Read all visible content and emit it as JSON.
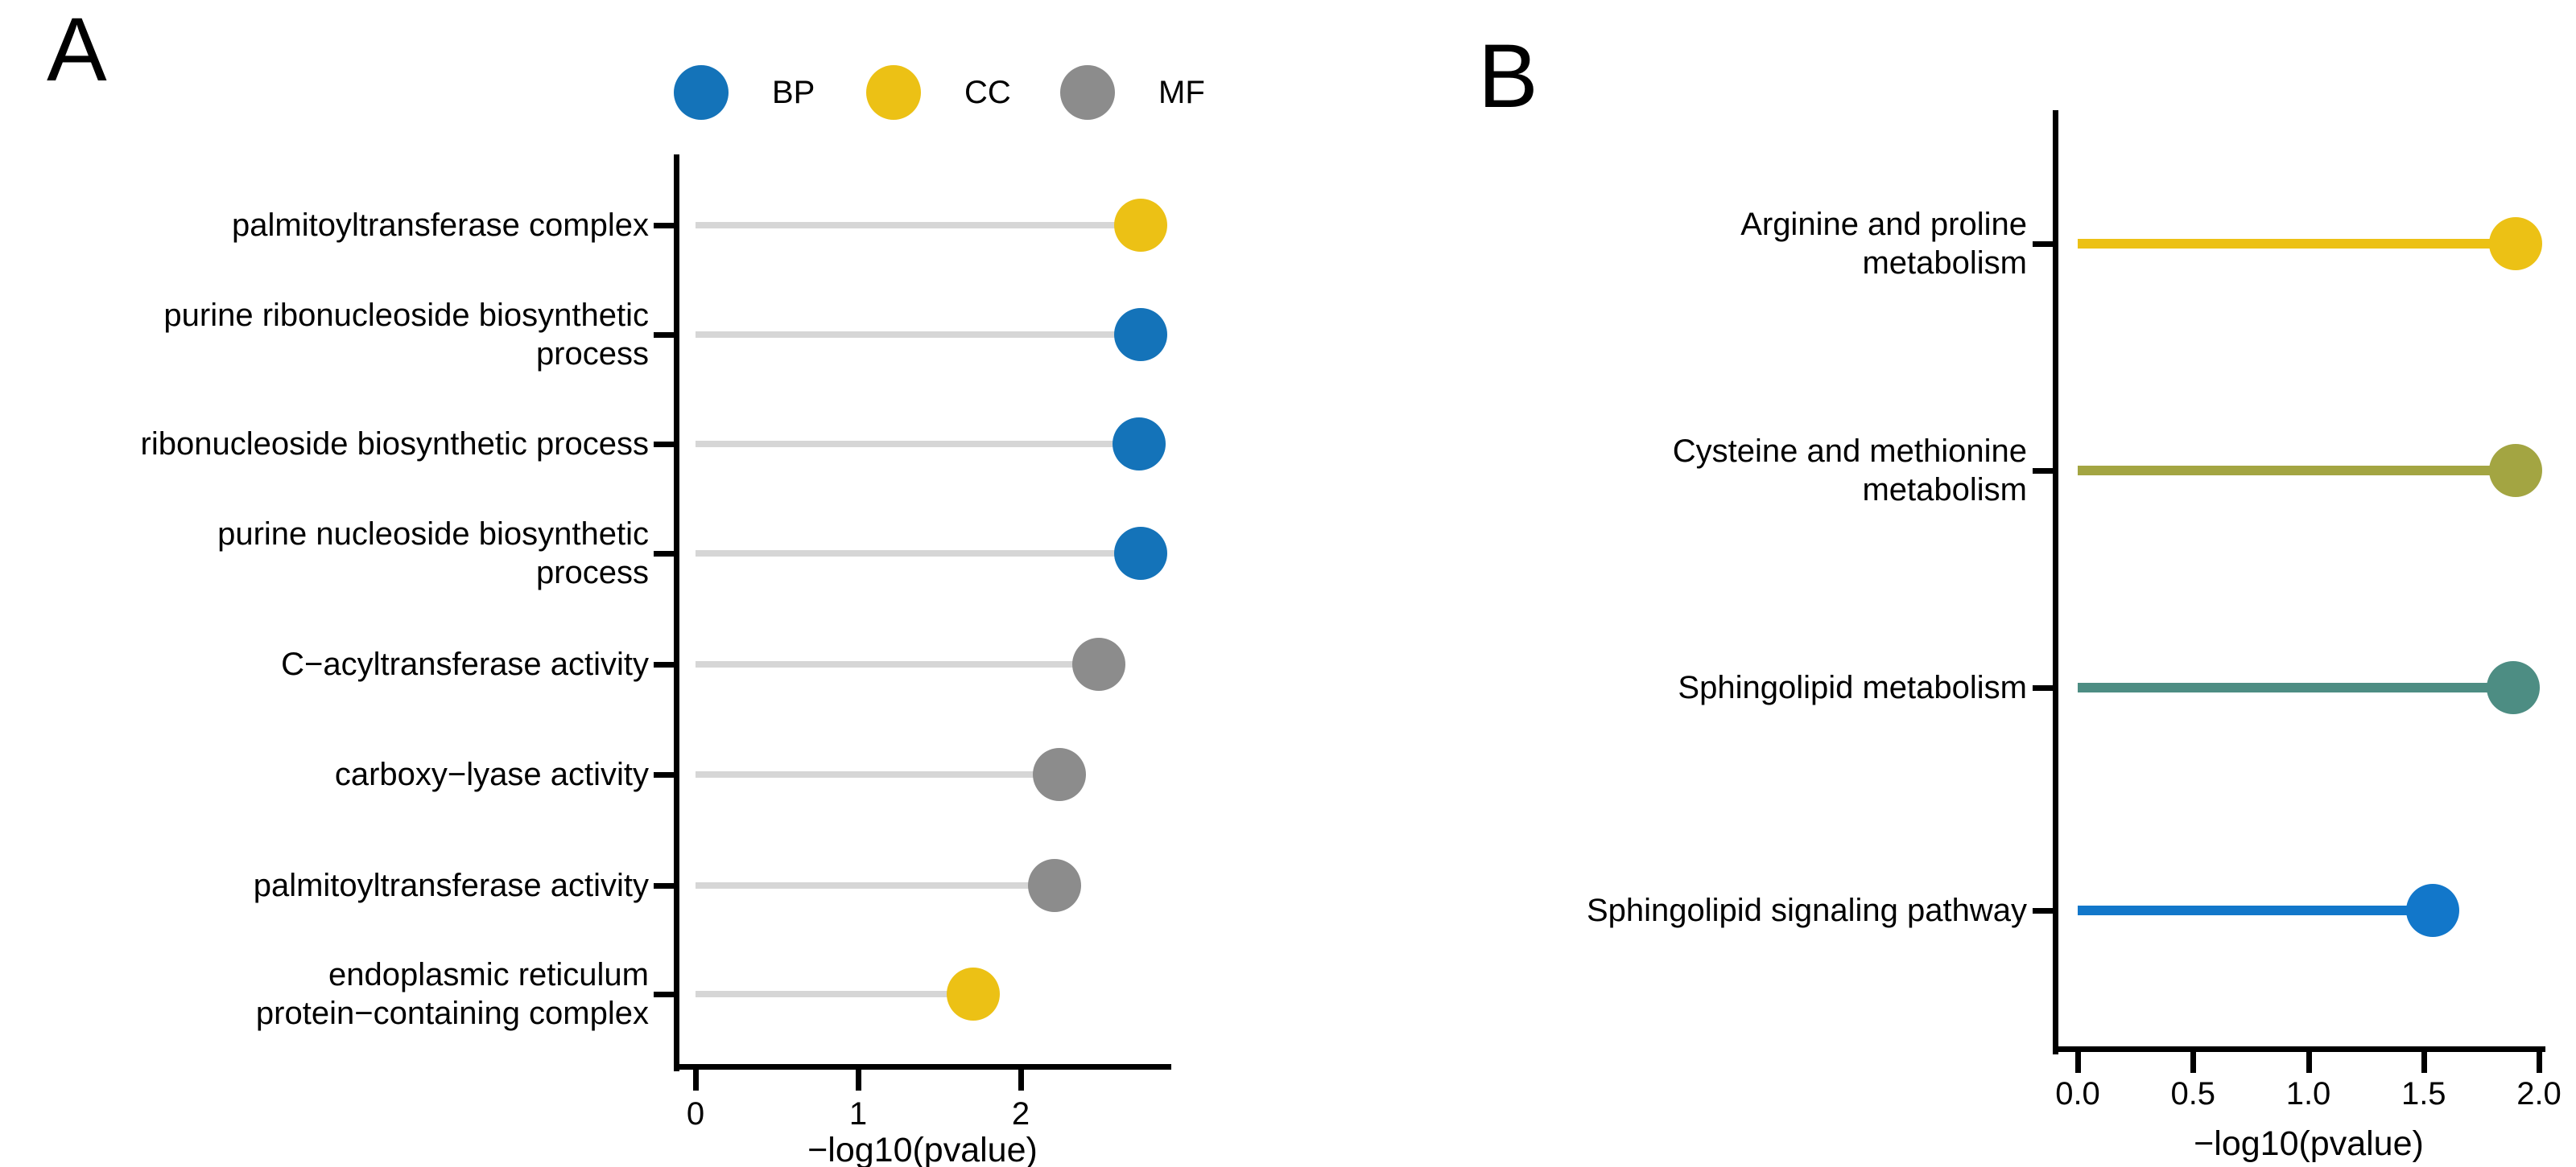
{
  "panels": [
    {
      "label": "A",
      "legend": {
        "position": "top",
        "items": [
          {
            "label": "BP",
            "color": "#1473B9"
          },
          {
            "label": "CC",
            "color": "#ECC115"
          },
          {
            "label": "MF",
            "color": "#8C8C8C"
          }
        ]
      },
      "chart_data": {
        "type": "scatter",
        "style": "lollipop",
        "title": "",
        "xlabel": "−log10(pvalue)",
        "ylabel": "",
        "xlim": [
          0,
          2.92
        ],
        "grid": false,
        "stem_color": "#D6D6D6",
        "xticks": [
          {
            "value": 0,
            "label": "0"
          },
          {
            "value": 1,
            "label": "1"
          },
          {
            "value": 2,
            "label": "2"
          }
        ],
        "rows": [
          {
            "label": "palmitoyltransferase complex",
            "label_lines": [
              "palmitoyltransferase complex"
            ],
            "category": "CC",
            "value": 2.74,
            "color": "#ECC115"
          },
          {
            "label": "purine ribonucleoside biosynthetic process",
            "label_lines": [
              "purine ribonucleoside biosynthetic",
              "process"
            ],
            "category": "BP",
            "value": 2.74,
            "color": "#1473B9"
          },
          {
            "label": "ribonucleoside biosynthetic process",
            "label_lines": [
              "ribonucleoside biosynthetic process"
            ],
            "category": "BP",
            "value": 2.73,
            "color": "#1473B9"
          },
          {
            "label": "purine nucleoside biosynthetic process",
            "label_lines": [
              "purine nucleoside biosynthetic",
              "process"
            ],
            "category": "BP",
            "value": 2.74,
            "color": "#1473B9"
          },
          {
            "label": "C−acyltransferase activity",
            "label_lines": [
              "C−acyltransferase activity"
            ],
            "category": "MF",
            "value": 2.48,
            "color": "#8C8C8C"
          },
          {
            "label": "carboxy−lyase activity",
            "label_lines": [
              "carboxy−lyase activity"
            ],
            "category": "MF",
            "value": 2.24,
            "color": "#8C8C8C"
          },
          {
            "label": "palmitoyltransferase activity",
            "label_lines": [
              "palmitoyltransferase activity"
            ],
            "category": "MF",
            "value": 2.21,
            "color": "#8C8C8C"
          },
          {
            "label": "endoplasmic reticulum protein−containing complex",
            "label_lines": [
              "endoplasmic reticulum",
              "protein−containing complex"
            ],
            "category": "CC",
            "value": 1.71,
            "color": "#ECC115"
          }
        ]
      }
    },
    {
      "label": "B",
      "chart_data": {
        "type": "scatter",
        "style": "lollipop",
        "title": "",
        "xlabel": "−log10(pvalue)",
        "ylabel": "",
        "xlim": [
          0,
          2.0
        ],
        "grid": false,
        "xticks": [
          {
            "value": 0,
            "label": "0.0"
          },
          {
            "value": 0.5,
            "label": "0.5"
          },
          {
            "value": 1,
            "label": "1.0"
          },
          {
            "value": 1.5,
            "label": "1.5"
          },
          {
            "value": 2,
            "label": "2.0"
          }
        ],
        "rows": [
          {
            "label": "Arginine and proline metabolism",
            "label_lines": [
              "Arginine and proline",
              "metabolism"
            ],
            "value": 1.9,
            "color": "#ECC115"
          },
          {
            "label": "Cysteine and methionine metabolism",
            "label_lines": [
              "Cysteine and methionine",
              "metabolism"
            ],
            "value": 1.9,
            "color": "#A3A542"
          },
          {
            "label": "Sphingolipid metabolism",
            "label_lines": [
              "Sphingolipid metabolism"
            ],
            "value": 1.89,
            "color": "#4D8D83"
          },
          {
            "label": "Sphingolipid signaling pathway",
            "label_lines": [
              "Sphingolipid signaling pathway"
            ],
            "value": 1.54,
            "color": "#1277CA"
          }
        ]
      }
    }
  ]
}
